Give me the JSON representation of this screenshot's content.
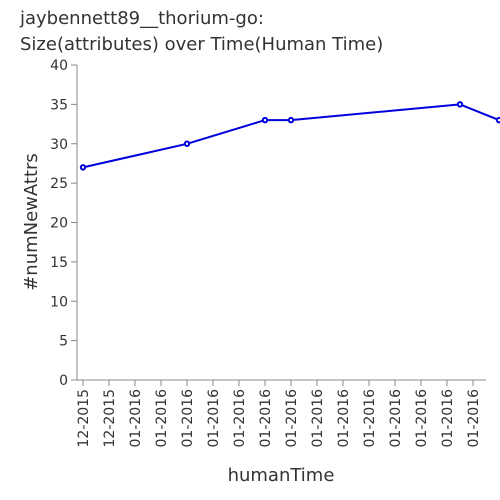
{
  "chart_data": {
    "type": "line",
    "title_lines": [
      "jaybennett89__thorium-go:",
      "Size(attributes) over Time(Human Time)"
    ],
    "xlabel": "humanTime",
    "ylabel": "#numNewAttrs",
    "ylim": [
      0,
      40
    ],
    "y_ticks": [
      0,
      5,
      10,
      15,
      20,
      25,
      30,
      35,
      40
    ],
    "x_tick_labels": [
      "12-2015",
      "12-2015",
      "01-2016",
      "01-2016",
      "01-2016",
      "01-2016",
      "01-2016",
      "01-2016",
      "01-2016",
      "01-2016",
      "01-2016",
      "01-2016",
      "01-2016",
      "01-2016",
      "01-2016",
      "01-2016"
    ],
    "series": [
      {
        "points": [
          {
            "x": 0.0,
            "y": 27
          },
          {
            "x": 4.0,
            "y": 30
          },
          {
            "x": 7.0,
            "y": 33
          },
          {
            "x": 8.0,
            "y": 33
          },
          {
            "x": 14.5,
            "y": 35
          },
          {
            "x": 16.0,
            "y": 33
          }
        ],
        "color": "#0000dd"
      }
    ],
    "grid": false,
    "legend": "none"
  }
}
